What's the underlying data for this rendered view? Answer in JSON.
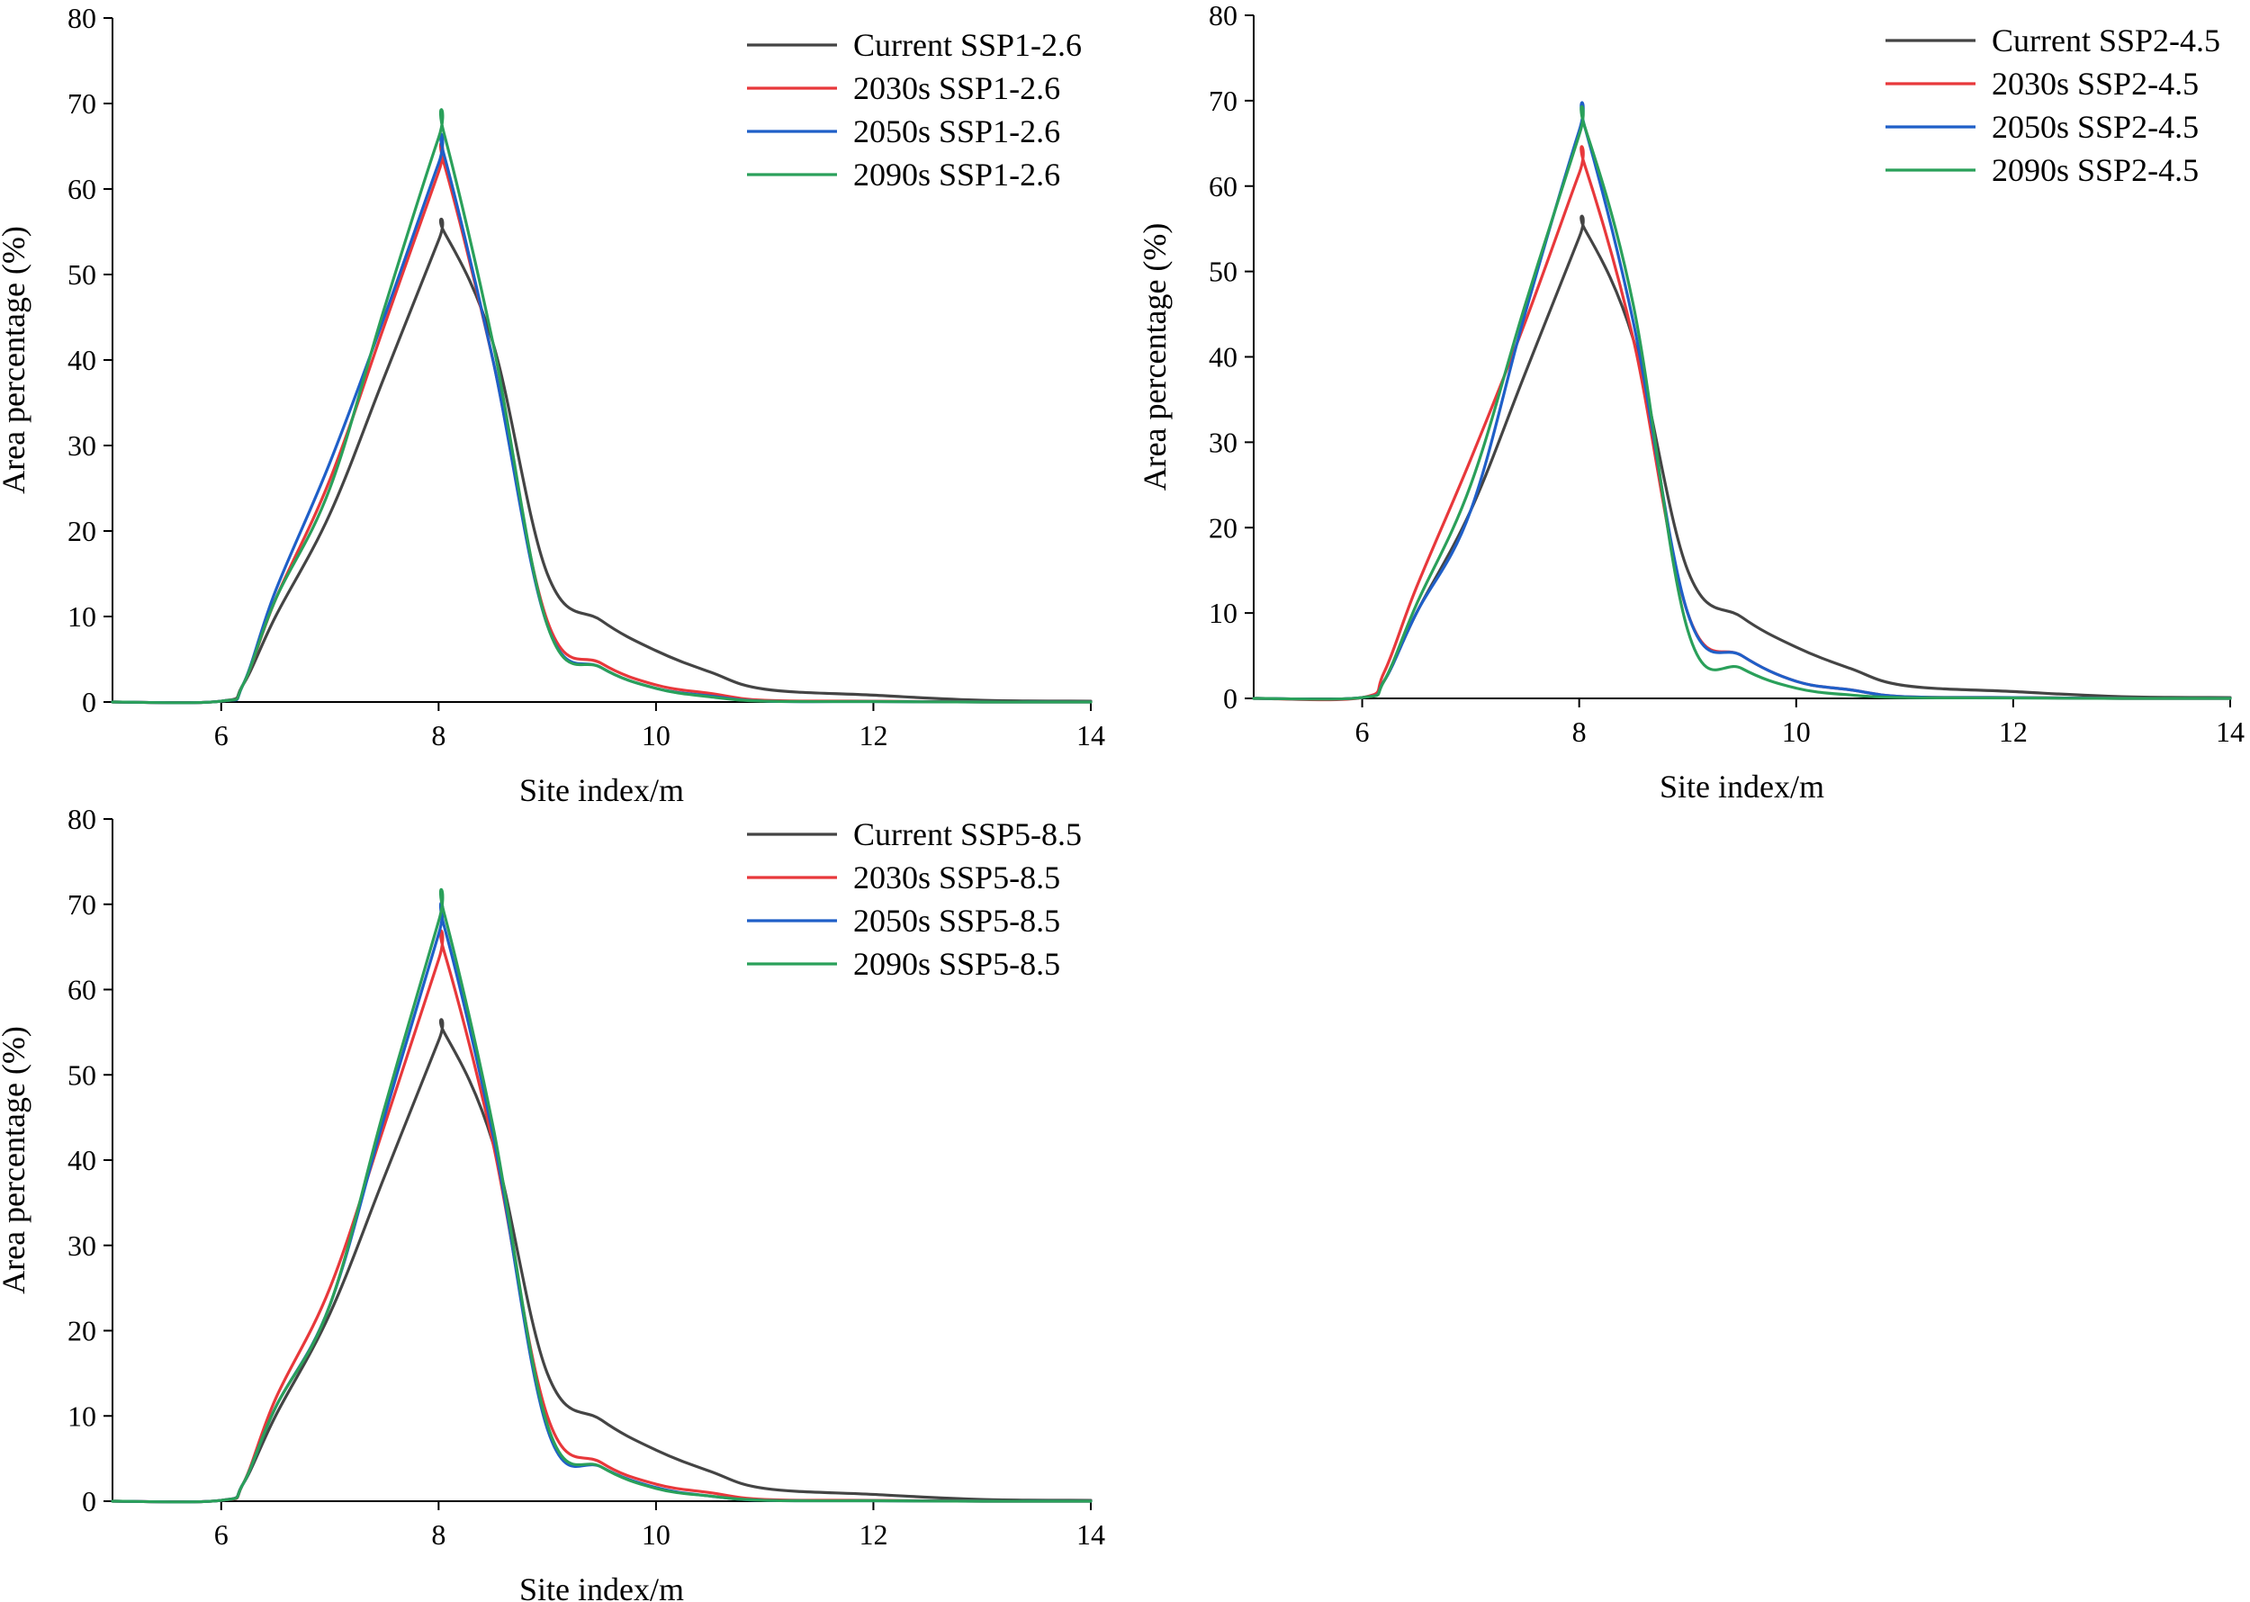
{
  "chart_data": [
    {
      "type": "line",
      "title": "",
      "xlabel": "Site index/m",
      "ylabel": "Area percentage (%)",
      "xlim": [
        5,
        14
      ],
      "ylim": [
        0,
        80
      ],
      "xticks": [
        "6",
        "8",
        "10",
        "12",
        "14"
      ],
      "yticks": [
        "0",
        "10",
        "20",
        "30",
        "40",
        "50",
        "60",
        "70",
        "80"
      ],
      "legend_position": "top-right",
      "series": [
        {
          "name": "Current SSP1-2.6",
          "color": "#444444",
          "x": [
            5,
            6,
            6.2,
            6.5,
            7,
            7.5,
            8,
            8.05,
            8.5,
            9,
            9.5,
            10,
            10.5,
            11,
            12,
            13,
            14
          ],
          "y": [
            0,
            0.1,
            2,
            10,
            22,
            38,
            54,
            55,
            42,
            15,
            9.5,
            6,
            3.5,
            1.5,
            0.8,
            0.2,
            0.1
          ]
        },
        {
          "name": "2030s SSP1-2.6",
          "color": "#e8383b",
          "x": [
            5,
            6,
            6.2,
            6.5,
            7,
            7.5,
            8,
            8.05,
            8.5,
            9,
            9.5,
            10,
            10.5,
            11,
            12,
            13,
            14
          ],
          "y": [
            0,
            0.1,
            2,
            12,
            26,
            44,
            62,
            63,
            40,
            9.5,
            4.5,
            2,
            1,
            0.2,
            0.1,
            0,
            0
          ]
        },
        {
          "name": "2050s SSP1-2.6",
          "color": "#1f5fc8",
          "x": [
            5,
            6,
            6.2,
            6.5,
            7,
            7.5,
            8,
            8.05,
            8.5,
            9,
            9.5,
            10,
            10.5,
            11,
            12,
            13,
            14
          ],
          "y": [
            0,
            0.1,
            2,
            13,
            28,
            45,
            63,
            64,
            40,
            9,
            4,
            1.6,
            0.7,
            0.1,
            0.05,
            0,
            0
          ]
        },
        {
          "name": "2090s SSP1-2.6",
          "color": "#2aa05a",
          "x": [
            5,
            6,
            6.2,
            6.5,
            7,
            7.5,
            8,
            8.05,
            8.5,
            9,
            9.5,
            10,
            10.5,
            11,
            12,
            13,
            14
          ],
          "y": [
            0,
            0.1,
            2,
            12,
            25,
            46,
            66,
            66.5,
            42,
            9,
            4,
            1.6,
            0.6,
            0.1,
            0.05,
            0,
            0
          ]
        }
      ]
    },
    {
      "type": "line",
      "title": "",
      "xlabel": "Site index/m",
      "ylabel": "Area percentage (%)",
      "xlim": [
        5,
        14
      ],
      "ylim": [
        0,
        80
      ],
      "xticks": [
        "6",
        "8",
        "10",
        "12",
        "14"
      ],
      "yticks": [
        "0",
        "10",
        "20",
        "30",
        "40",
        "50",
        "60",
        "70",
        "80"
      ],
      "legend_position": "top-right",
      "series": [
        {
          "name": "Current SSP2-4.5",
          "color": "#444444",
          "x": [
            5,
            6,
            6.2,
            6.5,
            7,
            7.5,
            8,
            8.05,
            8.5,
            9,
            9.5,
            10,
            10.5,
            11,
            12,
            13,
            14
          ],
          "y": [
            0,
            0.1,
            2,
            10,
            22,
            38,
            54,
            55,
            42,
            15,
            9.5,
            6,
            3.5,
            1.5,
            0.8,
            0.2,
            0.1
          ]
        },
        {
          "name": "2030s SSP2-4.5",
          "color": "#e8383b",
          "x": [
            5,
            6,
            6.2,
            6.5,
            7,
            7.5,
            8,
            8.05,
            8.5,
            9,
            9.5,
            10,
            10.5,
            11,
            12,
            13,
            14
          ],
          "y": [
            0,
            0.1,
            3,
            13,
            28,
            44,
            61.5,
            62.5,
            42,
            10,
            5,
            2,
            1,
            0.2,
            0.1,
            0,
            0
          ]
        },
        {
          "name": "2050s SSP2-4.5",
          "color": "#1f5fc8",
          "x": [
            5,
            6,
            6.2,
            6.5,
            7,
            7.5,
            8,
            8.05,
            8.5,
            9,
            9.5,
            10,
            10.5,
            11,
            12,
            13,
            14
          ],
          "y": [
            0,
            0.1,
            2,
            10,
            22,
            45,
            66.5,
            67,
            44,
            10,
            5,
            2,
            1,
            0.2,
            0.1,
            0,
            0
          ]
        },
        {
          "name": "2090s SSP2-4.5",
          "color": "#2aa05a",
          "x": [
            5,
            6,
            6.2,
            6.5,
            7,
            7.5,
            8,
            8.05,
            8.5,
            9,
            9.5,
            10,
            10.5,
            11,
            12,
            13,
            14
          ],
          "y": [
            0,
            0.1,
            2,
            11,
            25,
            46,
            66,
            67,
            46,
            8,
            3.5,
            1.2,
            0.4,
            0.1,
            0.05,
            0,
            0
          ]
        }
      ]
    },
    {
      "type": "line",
      "title": "",
      "xlabel": "Site index/m",
      "ylabel": "Area percentage (%)",
      "xlim": [
        5,
        14
      ],
      "ylim": [
        0,
        80
      ],
      "xticks": [
        "6",
        "8",
        "10",
        "12",
        "14"
      ],
      "yticks": [
        "0",
        "10",
        "20",
        "30",
        "40",
        "50",
        "60",
        "70",
        "80"
      ],
      "legend_position": "top-right",
      "series": [
        {
          "name": "Current SSP5-8.5",
          "color": "#444444",
          "x": [
            5,
            6,
            6.2,
            6.5,
            7,
            7.5,
            8,
            8.05,
            8.5,
            9,
            9.5,
            10,
            10.5,
            11,
            12,
            13,
            14
          ],
          "y": [
            0,
            0.1,
            2,
            10,
            22,
            38,
            54,
            55,
            42,
            15,
            9.5,
            6,
            3.5,
            1.5,
            0.8,
            0.2,
            0.1
          ]
        },
        {
          "name": "2030s SSP5-8.5",
          "color": "#e8383b",
          "x": [
            5,
            6,
            6.2,
            6.5,
            7,
            7.5,
            8,
            8.05,
            8.5,
            9,
            9.5,
            10,
            10.5,
            11,
            12,
            13,
            14
          ],
          "y": [
            0,
            0.1,
            2,
            12,
            25,
            44,
            63.5,
            64.5,
            42,
            10,
            4.5,
            2,
            1,
            0.2,
            0.1,
            0,
            0
          ]
        },
        {
          "name": "2050s SSP5-8.5",
          "color": "#1f5fc8",
          "x": [
            5,
            6,
            6.2,
            6.5,
            7,
            7.5,
            8,
            8.05,
            8.5,
            9,
            9.5,
            10,
            10.5,
            11,
            12,
            13,
            14
          ],
          "y": [
            0,
            0.1,
            2,
            11,
            23,
            45,
            66.5,
            67.5,
            43,
            8.5,
            4,
            1.6,
            0.6,
            0.1,
            0.05,
            0,
            0
          ]
        },
        {
          "name": "2090s SSP5-8.5",
          "color": "#2aa05a",
          "x": [
            5,
            6,
            6.2,
            6.5,
            7,
            7.5,
            8,
            8.05,
            8.5,
            9,
            9.5,
            10,
            10.5,
            11,
            12,
            13,
            14
          ],
          "y": [
            0,
            0.1,
            2,
            11,
            23,
            46,
            68,
            69,
            44,
            9,
            4,
            1.5,
            0.6,
            0.1,
            0.05,
            0,
            0
          ]
        }
      ]
    }
  ]
}
